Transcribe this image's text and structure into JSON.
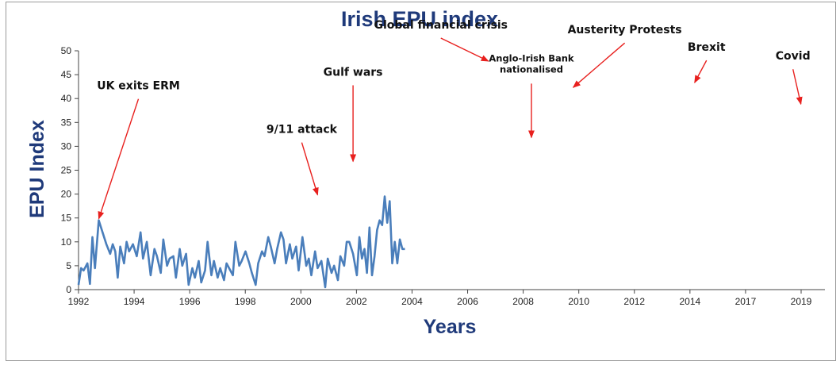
{
  "chart_data": {
    "type": "line",
    "title": "Irish EPU index",
    "xlabel": "Years",
    "ylabel": "EPU Index",
    "ylim": [
      0,
      50
    ],
    "yticks": [
      0,
      5,
      10,
      15,
      20,
      25,
      30,
      35,
      40,
      45,
      50
    ],
    "xticks": [
      "1992",
      "1994",
      "1996",
      "1998",
      "2000",
      "2002",
      "2004",
      "2006",
      "2008",
      "2010",
      "2012",
      "2014",
      "2017",
      "2019"
    ],
    "xlim": [
      1992,
      2021.5
    ],
    "grid": false,
    "legend": "none",
    "line_color": "#4a7ebb",
    "arrow_color": "#e8201e",
    "series": [
      {
        "points": [
          [
            1992.0,
            1.0
          ],
          [
            1992.1,
            4.5
          ],
          [
            1992.2,
            4.0
          ],
          [
            1992.35,
            5.5
          ],
          [
            1992.45,
            1.2
          ],
          [
            1992.55,
            11.0
          ],
          [
            1992.65,
            4.5
          ],
          [
            1992.8,
            14.5
          ],
          [
            1992.95,
            12.0
          ],
          [
            1993.1,
            9.5
          ],
          [
            1993.25,
            7.5
          ],
          [
            1993.35,
            9.5
          ],
          [
            1993.45,
            8.0
          ],
          [
            1993.55,
            2.5
          ],
          [
            1993.65,
            9.0
          ],
          [
            1993.8,
            5.5
          ],
          [
            1993.9,
            10.0
          ],
          [
            1994.0,
            8.0
          ],
          [
            1994.15,
            9.5
          ],
          [
            1994.3,
            7.0
          ],
          [
            1994.45,
            12.0
          ],
          [
            1994.55,
            6.5
          ],
          [
            1994.7,
            10.0
          ],
          [
            1994.85,
            3.0
          ],
          [
            1995.0,
            8.5
          ],
          [
            1995.1,
            7.0
          ],
          [
            1995.25,
            3.5
          ],
          [
            1995.35,
            10.5
          ],
          [
            1995.5,
            5.0
          ],
          [
            1995.6,
            6.5
          ],
          [
            1995.75,
            7.0
          ],
          [
            1995.85,
            2.5
          ],
          [
            1996.0,
            8.5
          ],
          [
            1996.1,
            5.0
          ],
          [
            1996.25,
            7.5
          ],
          [
            1996.35,
            1.0
          ],
          [
            1996.5,
            4.5
          ],
          [
            1996.6,
            2.5
          ],
          [
            1996.75,
            6.0
          ],
          [
            1996.85,
            1.5
          ],
          [
            1997.0,
            4.0
          ],
          [
            1997.1,
            10.0
          ],
          [
            1997.25,
            3.0
          ],
          [
            1997.35,
            6.0
          ],
          [
            1997.5,
            2.5
          ],
          [
            1997.6,
            4.5
          ],
          [
            1997.75,
            2.0
          ],
          [
            1997.85,
            5.5
          ],
          [
            1998.0,
            4.0
          ],
          [
            1998.1,
            3.0
          ],
          [
            1998.2,
            10.0
          ],
          [
            1998.35,
            5.0
          ],
          [
            1998.45,
            6.0
          ],
          [
            1998.6,
            8.0
          ],
          [
            1998.75,
            5.5
          ],
          [
            1998.85,
            3.5
          ],
          [
            1999.0,
            1.0
          ],
          [
            1999.1,
            5.5
          ],
          [
            1999.25,
            8.0
          ],
          [
            1999.35,
            7.0
          ],
          [
            1999.5,
            11.0
          ],
          [
            1999.6,
            9.0
          ],
          [
            1999.75,
            5.5
          ],
          [
            1999.85,
            8.5
          ],
          [
            2000.0,
            12.0
          ],
          [
            2000.1,
            10.5
          ],
          [
            2000.2,
            5.5
          ],
          [
            2000.35,
            9.5
          ],
          [
            2000.45,
            6.5
          ],
          [
            2000.6,
            9.0
          ],
          [
            2000.7,
            4.0
          ],
          [
            2000.85,
            11.0
          ],
          [
            2001.0,
            5.0
          ],
          [
            2001.1,
            6.5
          ],
          [
            2001.2,
            3.0
          ],
          [
            2001.35,
            8.0
          ],
          [
            2001.45,
            4.5
          ],
          [
            2001.6,
            6.0
          ],
          [
            2001.75,
            0.5
          ],
          [
            2001.85,
            6.5
          ],
          [
            2002.0,
            3.5
          ],
          [
            2002.1,
            5.0
          ],
          [
            2002.25,
            2.0
          ],
          [
            2002.35,
            7.0
          ],
          [
            2002.5,
            5.0
          ],
          [
            2002.6,
            10.0
          ],
          [
            2002.7,
            10.0
          ],
          [
            2002.85,
            7.5
          ],
          [
            2003.0,
            3.0
          ],
          [
            2003.1,
            11.0
          ],
          [
            2003.2,
            6.5
          ],
          [
            2003.3,
            8.5
          ],
          [
            2003.4,
            3.5
          ],
          [
            2003.5,
            13.0
          ],
          [
            2003.6,
            3.0
          ],
          [
            2003.7,
            7.0
          ],
          [
            2003.8,
            12.5
          ],
          [
            2003.9,
            14.5
          ],
          [
            2004.0,
            13.5
          ],
          [
            2004.1,
            19.5
          ],
          [
            2004.2,
            14.0
          ],
          [
            2004.3,
            18.5
          ],
          [
            2004.4,
            5.5
          ],
          [
            2004.5,
            10.0
          ],
          [
            2004.6,
            5.5
          ],
          [
            2004.7,
            10.5
          ],
          [
            2004.8,
            8.5
          ],
          [
            2004.9,
            8.5
          ]
        ]
      }
    ],
    "annotations": [
      {
        "text": "UK exits ERM",
        "x": 1992.8,
        "y": 14.5
      },
      {
        "text": "9/11 attack",
        "x": 2001.45,
        "y": 19.5
      },
      {
        "text": "Gulf wars",
        "x": 2002.85,
        "y": 26.5
      },
      {
        "text": "Global financial crisis",
        "x": 2008.2,
        "y": 47.5
      },
      {
        "text": "Anglo-Irish Bank",
        "text2": "nationalised",
        "x": 2009.9,
        "y": 31.5
      },
      {
        "text": "Austerity Protests",
        "x": 2011.55,
        "y": 42.0
      },
      {
        "text": "Brexit",
        "x": 2016.35,
        "y": 43.0
      },
      {
        "text": "Covid",
        "x": 2020.55,
        "y": 38.5
      }
    ]
  }
}
